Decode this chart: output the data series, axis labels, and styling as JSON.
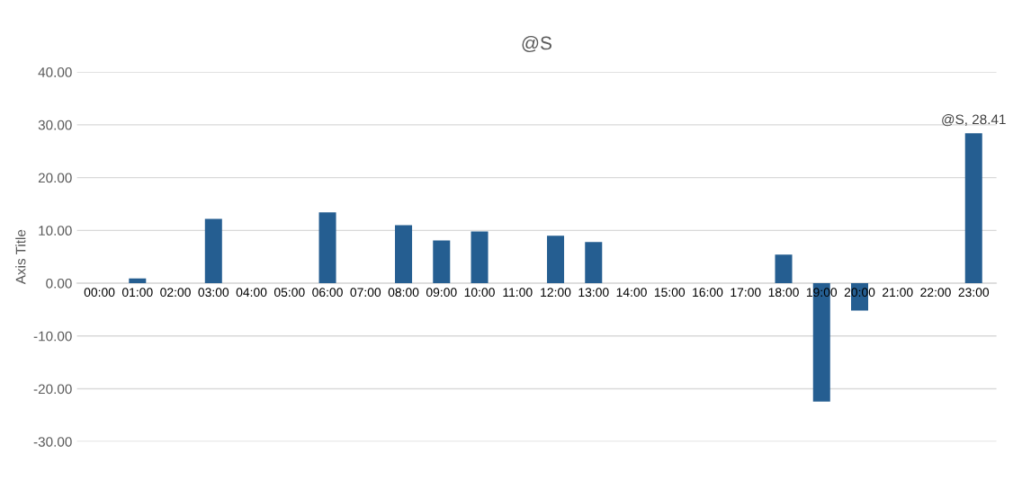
{
  "chart_data": {
    "type": "bar",
    "title": "@S",
    "ylabel": "Axis Title",
    "categories": [
      "00:00",
      "01:00",
      "02:00",
      "03:00",
      "04:00",
      "05:00",
      "06:00",
      "07:00",
      "08:00",
      "09:00",
      "10:00",
      "11:00",
      "12:00",
      "13:00",
      "14:00",
      "15:00",
      "16:00",
      "17:00",
      "18:00",
      "19:00",
      "20:00",
      "21:00",
      "22:00",
      "23:00"
    ],
    "series": [
      {
        "color": "#255e91",
        "values": [
          null,
          0.9,
          null,
          12.2,
          null,
          null,
          13.4,
          null,
          11.0,
          8.1,
          9.8,
          null,
          9.0,
          7.8,
          null,
          null,
          null,
          null,
          5.4,
          -22.4,
          -5.2,
          null,
          null,
          28.41
        ]
      }
    ],
    "ylim": [
      -30,
      40
    ],
    "yticks": [
      {
        "value": -30,
        "label": "-30.00"
      },
      {
        "value": -20,
        "label": "-20.00"
      },
      {
        "value": -10,
        "label": "-10.00"
      },
      {
        "value": 0,
        "label": "0.00"
      },
      {
        "value": 10,
        "label": "10.00"
      },
      {
        "value": 20,
        "label": "20.00"
      },
      {
        "value": 30,
        "label": "30.00"
      },
      {
        "value": 40,
        "label": "40.00"
      }
    ],
    "grid": "y",
    "annotations": [
      {
        "text": "@S, 28.41",
        "x": "23:00",
        "y": 28.41
      }
    ]
  }
}
